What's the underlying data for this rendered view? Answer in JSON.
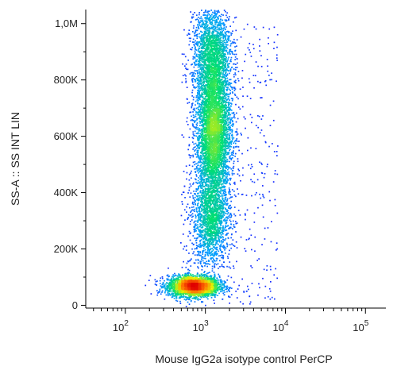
{
  "chart_data": {
    "type": "scatter",
    "title": "",
    "xlabel": "Mouse IgG2a isotype control PerCP",
    "ylabel": "SS-A :: SS INT LIN",
    "x_scale": "log",
    "xlim": [
      32,
      180000
    ],
    "ylim": [
      -10000,
      1050000
    ],
    "x_ticks": [
      {
        "value": 100,
        "base": "10",
        "exp": "2"
      },
      {
        "value": 1000,
        "base": "10",
        "exp": "3"
      },
      {
        "value": 10000,
        "base": "10",
        "exp": "4"
      },
      {
        "value": 100000,
        "base": "10",
        "exp": "5"
      }
    ],
    "y_ticks": [
      {
        "value": 0,
        "label": "0"
      },
      {
        "value": 200000,
        "label": "200K"
      },
      {
        "value": 400000,
        "label": "400K"
      },
      {
        "value": 600000,
        "label": "600K"
      },
      {
        "value": 800000,
        "label": "800K"
      },
      {
        "value": 1000000,
        "label": "1,0M"
      }
    ],
    "grid": false,
    "colormap": [
      "#1a1aff",
      "#00a0ff",
      "#00e070",
      "#e8f000",
      "#ff7000",
      "#e00000"
    ],
    "populations": [
      {
        "center_x": 700,
        "center_y": 70000,
        "spread_x_decades": 0.16,
        "spread_y": 18000,
        "points": 3000
      },
      {
        "center_x": 1250,
        "center_y": 620000,
        "spread_x_decades": 0.11,
        "spread_y": 130000,
        "points": 4500
      },
      {
        "center_x": 1200,
        "center_y": 900000,
        "spread_x_decades": 0.12,
        "spread_y": 90000,
        "points": 1800
      },
      {
        "center_x": 1150,
        "center_y": 300000,
        "spread_x_decades": 0.12,
        "spread_y": 80000,
        "points": 1600
      }
    ]
  }
}
